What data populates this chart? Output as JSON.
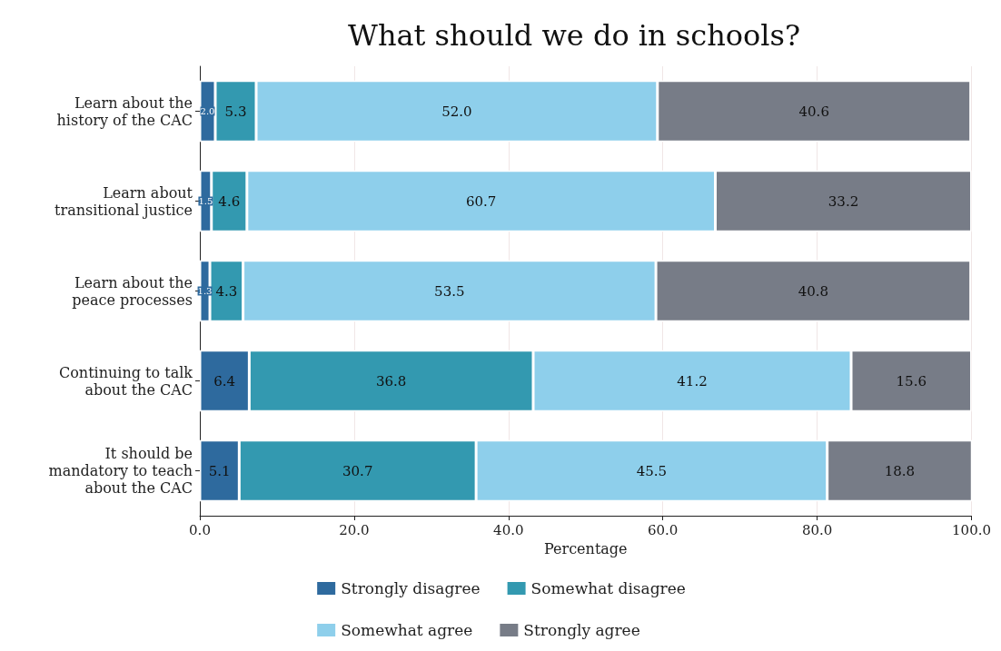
{
  "chart_data": {
    "type": "bar",
    "orientation": "horizontal",
    "stacked": true,
    "title": "What should we do in schools?",
    "xlabel": "Percentage",
    "categories": [
      "Learn about the\nhistory of the CAC",
      "Learn about\ntransitional justice",
      "Learn about the\npeace processes",
      "Continuing to talk\nabout the CAC",
      "It should be\nmandatory to teach\nabout the CAC"
    ],
    "series": [
      {
        "name": "Strongly disagree",
        "color": "#2e6a9e",
        "values": [
          2.0,
          1.5,
          1.3,
          6.4,
          5.1
        ],
        "value_labels": [
          "2.0",
          "1.5",
          "1.3",
          "6.4",
          "5.1"
        ]
      },
      {
        "name": "Somewhat disagree",
        "color": "#3399b0",
        "values": [
          5.3,
          4.6,
          4.3,
          36.8,
          30.7
        ],
        "value_labels": [
          "5.3",
          "4.6",
          "4.3",
          "36.8",
          "30.7"
        ]
      },
      {
        "name": "Somewhat agree",
        "color": "#8ecfeb",
        "values": [
          52.0,
          60.7,
          53.5,
          41.2,
          45.5
        ],
        "value_labels": [
          "52.0",
          "60.7",
          "53.5",
          "41.2",
          "45.5"
        ]
      },
      {
        "name": "Strongly agree",
        "color": "#777c87",
        "values": [
          40.6,
          33.2,
          40.8,
          15.6,
          18.8
        ],
        "value_labels": [
          "40.6",
          "33.2",
          "40.8",
          "15.6",
          "18.8"
        ]
      }
    ],
    "xlim": [
      0,
      100
    ],
    "xticks": [
      {
        "value": 0,
        "label": "0.0"
      },
      {
        "value": 20,
        "label": "20.0"
      },
      {
        "value": 40,
        "label": "40.0"
      },
      {
        "value": 60,
        "label": "60.0"
      },
      {
        "value": 80,
        "label": "80.0"
      },
      {
        "value": 100,
        "label": "100.0"
      }
    ],
    "grid": "x",
    "legend": "bottom"
  }
}
